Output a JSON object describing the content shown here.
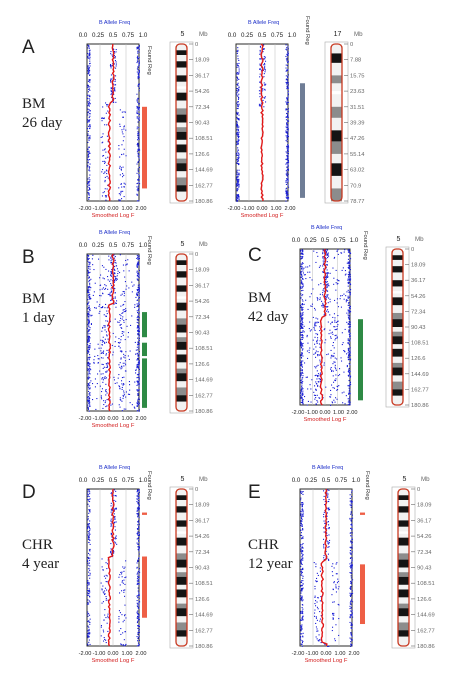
{
  "figure": {
    "colors": {
      "baf_points": "#1a1fd6",
      "logr_points": "#e01818",
      "plot_border": "#2a2a2a",
      "region_line": "#d9281a",
      "top_axis_text": "#1a2cc8",
      "bottom_axis_text": "#1a1a1a",
      "bottom_axis_label": "#d32020",
      "found_reg_text": "#333333",
      "chrom_outline": "#c83820",
      "chrom_dark": "#141414",
      "chrom_light": "#f2f2f2"
    },
    "common": {
      "top_axis_title": "B Allele Freq",
      "top_ticks": [
        "0.0",
        "0.25",
        "0.5",
        "0.75",
        "1.0"
      ],
      "bottom_axis_label": "Smoothed Log F",
      "bottom_ticks": [
        "-2.00",
        "-1.00",
        "0.00",
        "1.00",
        "2.00"
      ],
      "found_reg_label": "Found Reg",
      "chromosome_number": "5",
      "mb_label": "Mb",
      "mb_ticks": [
        "0",
        "18.09",
        "36.17",
        "54.26",
        "72.34",
        "90.43",
        "108.51",
        "126.6",
        "144.69",
        "162.77",
        "180.86"
      ]
    },
    "panels": [
      {
        "id": "A",
        "letter": "A",
        "line1": "BM",
        "line2": "26 day",
        "region_color": "#ee5f46"
      },
      {
        "id": "A2",
        "chromosome_number": "17",
        "mb_ticks": [
          "0",
          "7.88",
          "15.75",
          "23.63",
          "31.51",
          "39.39",
          "47.26",
          "55.14",
          "63.02",
          "70.9",
          "78.77"
        ],
        "region_color": "#6f7d96"
      },
      {
        "id": "B",
        "letter": "B",
        "line1": "BM",
        "line2": "1 day",
        "region_color": "#2e8a45"
      },
      {
        "id": "C",
        "letter": "C",
        "line1": "BM",
        "line2": "42 day",
        "region_color": "#2e8a45"
      },
      {
        "id": "D",
        "letter": "D",
        "line1": "CHR",
        "line2": "4 year",
        "region_color": "#ee5f46"
      },
      {
        "id": "E",
        "letter": "E",
        "line1": "CHR",
        "line2": "12 year",
        "region_color": "#ee5f46"
      }
    ]
  }
}
